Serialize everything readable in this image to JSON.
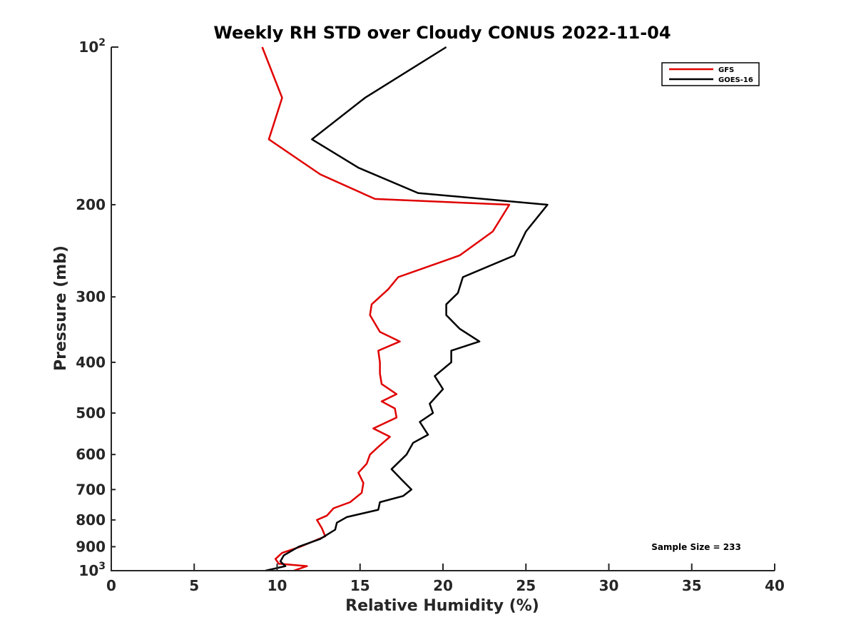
{
  "chart_data": {
    "type": "line",
    "title": "Weekly RH STD over Cloudy CONUS 2022-11-04",
    "xlabel": "Relative Humidity (%)",
    "ylabel": "Pressure (mb)",
    "xlim": [
      0,
      40
    ],
    "ylim": [
      100,
      1000
    ],
    "y_scale": "log",
    "y_reversed": true,
    "x_ticks": [
      "0",
      "5",
      "10",
      "15",
      "20",
      "25",
      "30",
      "35",
      "40"
    ],
    "y_ticks": [
      {
        "value": 100,
        "label": "10",
        "sup": "2"
      },
      {
        "value": 200,
        "label": "200"
      },
      {
        "value": 300,
        "label": "300"
      },
      {
        "value": 400,
        "label": "400"
      },
      {
        "value": 500,
        "label": "500"
      },
      {
        "value": 600,
        "label": "600"
      },
      {
        "value": 700,
        "label": "700"
      },
      {
        "value": 800,
        "label": "800"
      },
      {
        "value": 900,
        "label": "900"
      },
      {
        "value": 1000,
        "label": "10",
        "sup": "3"
      }
    ],
    "grid": false,
    "legend_position": "top-right",
    "annotation": "Sample Size = 233",
    "series": [
      {
        "name": "GFS",
        "color": "#e00000",
        "points": [
          [
            9.1,
            100
          ],
          [
            10.3,
            125
          ],
          [
            9.5,
            150
          ],
          [
            12.6,
            175
          ],
          [
            15.9,
            195
          ],
          [
            24.0,
            200
          ],
          [
            23.0,
            225
          ],
          [
            21.0,
            250
          ],
          [
            17.3,
            275
          ],
          [
            16.7,
            290
          ],
          [
            15.7,
            310
          ],
          [
            15.6,
            325
          ],
          [
            16.2,
            350
          ],
          [
            17.4,
            365
          ],
          [
            16.1,
            380
          ],
          [
            16.2,
            400
          ],
          [
            16.2,
            420
          ],
          [
            16.3,
            440
          ],
          [
            17.2,
            460
          ],
          [
            16.3,
            475
          ],
          [
            17.1,
            490
          ],
          [
            17.2,
            510
          ],
          [
            15.8,
            535
          ],
          [
            16.8,
            555
          ],
          [
            16.1,
            580
          ],
          [
            15.6,
            600
          ],
          [
            15.4,
            625
          ],
          [
            14.9,
            650
          ],
          [
            15.2,
            680
          ],
          [
            15.1,
            710
          ],
          [
            14.4,
            740
          ],
          [
            13.4,
            760
          ],
          [
            13.0,
            785
          ],
          [
            12.4,
            800
          ],
          [
            12.7,
            830
          ],
          [
            12.9,
            860
          ],
          [
            11.4,
            900
          ],
          [
            10.3,
            925
          ],
          [
            9.9,
            950
          ],
          [
            10.1,
            970
          ],
          [
            11.8,
            980
          ],
          [
            11.0,
            1000
          ]
        ]
      },
      {
        "name": "GOES-16",
        "color": "#000000",
        "points": [
          [
            20.2,
            100
          ],
          [
            15.3,
            125
          ],
          [
            12.1,
            150
          ],
          [
            14.9,
            170
          ],
          [
            18.5,
            190
          ],
          [
            26.3,
            200
          ],
          [
            25.0,
            225
          ],
          [
            24.3,
            250
          ],
          [
            21.2,
            275
          ],
          [
            20.9,
            295
          ],
          [
            20.2,
            310
          ],
          [
            20.2,
            325
          ],
          [
            21.0,
            345
          ],
          [
            22.2,
            365
          ],
          [
            20.5,
            380
          ],
          [
            20.5,
            400
          ],
          [
            19.5,
            425
          ],
          [
            20.0,
            450
          ],
          [
            19.2,
            480
          ],
          [
            19.4,
            500
          ],
          [
            18.6,
            520
          ],
          [
            19.1,
            550
          ],
          [
            18.2,
            570
          ],
          [
            17.8,
            600
          ],
          [
            16.9,
            640
          ],
          [
            17.5,
            670
          ],
          [
            18.1,
            700
          ],
          [
            17.6,
            720
          ],
          [
            16.2,
            740
          ],
          [
            16.1,
            765
          ],
          [
            14.2,
            790
          ],
          [
            13.6,
            810
          ],
          [
            13.5,
            835
          ],
          [
            12.6,
            870
          ],
          [
            11.3,
            900
          ],
          [
            10.4,
            935
          ],
          [
            10.2,
            960
          ],
          [
            10.5,
            980
          ],
          [
            9.3,
            1000
          ]
        ]
      }
    ]
  }
}
